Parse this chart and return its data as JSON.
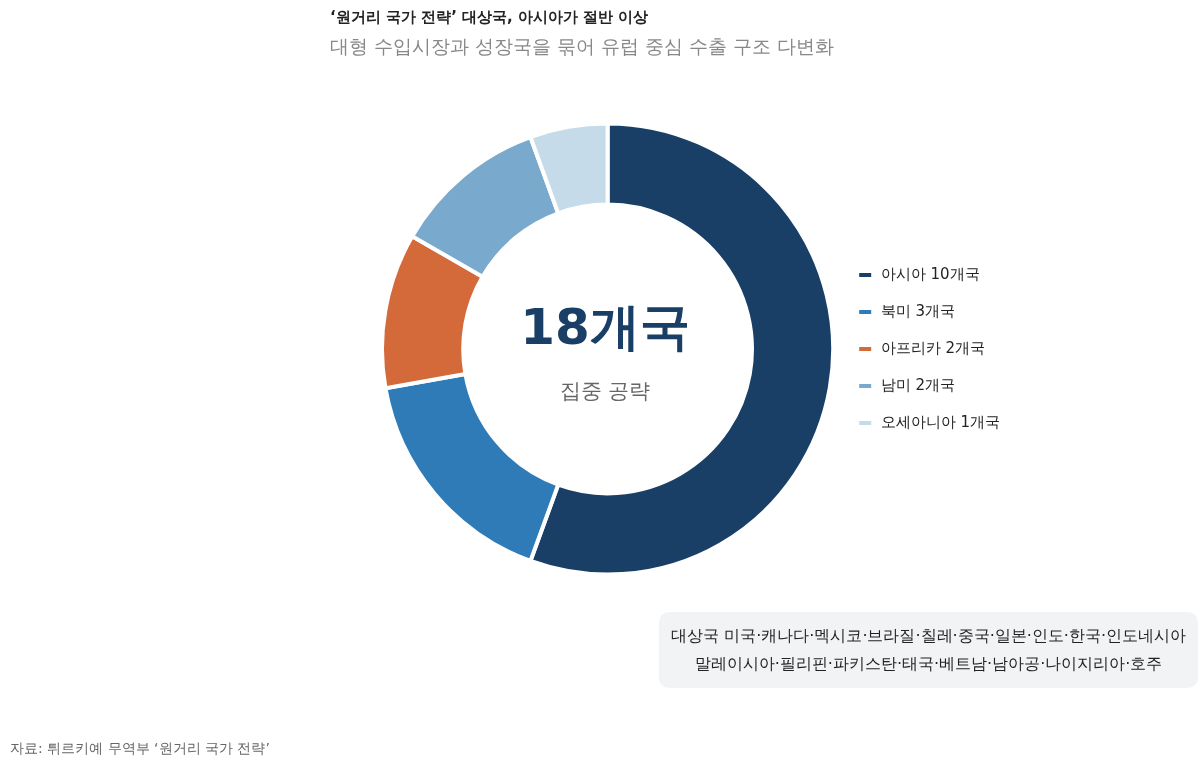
{
  "chart_data": {
    "type": "donut",
    "title": "‘원거리 국가 전략’ 대상국, 아시아가 절반 이상",
    "subtitle": "대형 수입시장과 성장국을 묶어 유럽 중심 수출 구조 다변화",
    "categories": [
      "아시아 10개국",
      "북미 3개국",
      "아프리카 2개국",
      "남미 2개국",
      "오세아니아 1개국"
    ],
    "values": [
      10,
      3,
      2,
      2,
      1
    ],
    "colors": [
      "#1a3f66",
      "#2e7bb8",
      "#d4693a",
      "#79a9cc",
      "#c5dbea"
    ],
    "legend": "right",
    "annotations": [
      "18개국",
      "집중 공략",
      "대상국  미국·캐나다·멕시코·브라질·칠레·중국·일본·인도·한국·인도네시아\n말레이시아·필리핀·파키스탄·태국·베트남·남아공·나이지리아·호주",
      "자료: 튀르키예 무역부 ‘원거리 국가 전략’"
    ]
  }
}
